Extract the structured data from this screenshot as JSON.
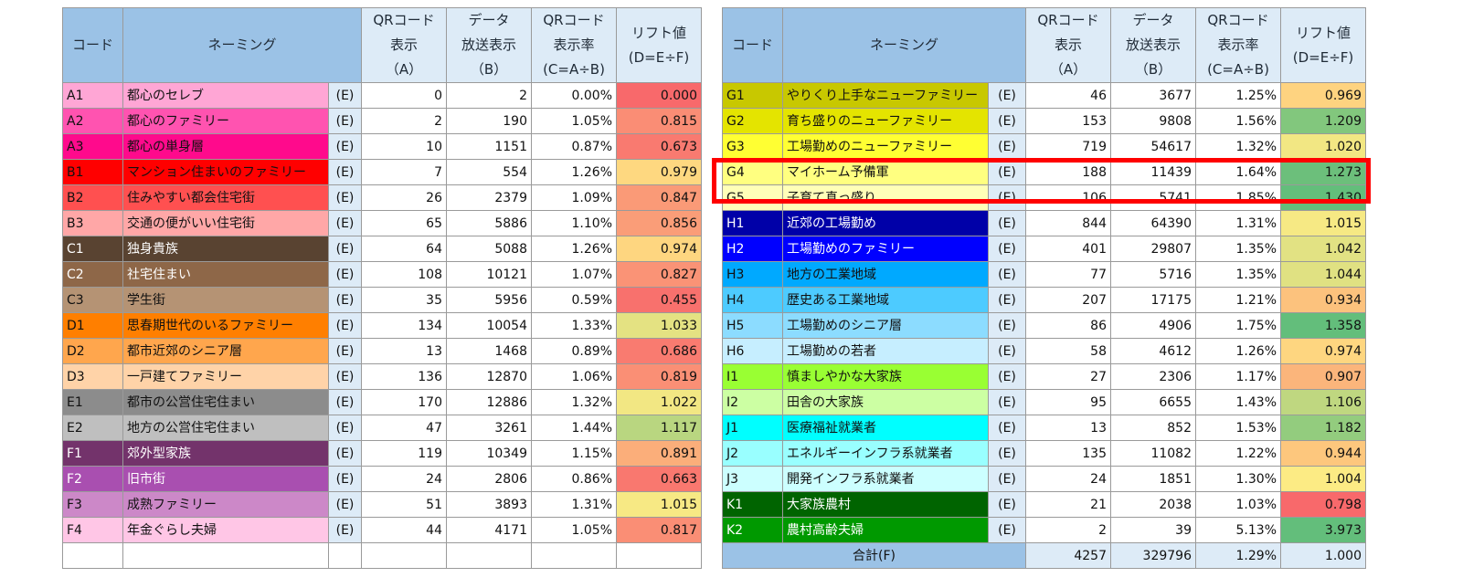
{
  "headers": {
    "code": "コード",
    "naming": "ネーミング",
    "qr": [
      "QRコード",
      "表示",
      "（A）"
    ],
    "data": [
      "データ",
      "放送表示",
      "（B）"
    ],
    "rate": [
      "QRコード",
      "表示率",
      "(C=A÷B)"
    ],
    "lift": [
      "リフト値",
      "(D=E÷F)"
    ]
  },
  "left_rows": [
    {
      "code": "A1",
      "name": "都心のセレブ",
      "e": "(E)",
      "a": "0",
      "b": "2",
      "c": "0.00%",
      "d": "0.000",
      "code_color": "#ffa6d5",
      "lift_color": "#f8696b",
      "text_color": "#111111"
    },
    {
      "code": "A2",
      "name": "都心のファミリー",
      "e": "(E)",
      "a": "2",
      "b": "190",
      "c": "1.05%",
      "d": "0.815",
      "code_color": "#ff53b0",
      "lift_color": "#fa8d75",
      "text_color": "#111111"
    },
    {
      "code": "A3",
      "name": "都心の単身層",
      "e": "(E)",
      "a": "10",
      "b": "1151",
      "c": "0.87%",
      "d": "0.673",
      "code_color": "#ff0a8c",
      "lift_color": "#f97a70",
      "text_color": "#111111"
    },
    {
      "code": "B1",
      "name": "マンション住まいのファミリー",
      "e": "(E)",
      "a": "7",
      "b": "554",
      "c": "1.26%",
      "d": "0.979",
      "code_color": "#ff0000",
      "lift_color": "#fed880",
      "text_color": "#111111"
    },
    {
      "code": "B2",
      "name": "住みやすい都会住宅街",
      "e": "(E)",
      "a": "26",
      "b": "2379",
      "c": "1.09%",
      "d": "0.847",
      "code_color": "#ff5050",
      "lift_color": "#fa9a77",
      "text_color": "#111111"
    },
    {
      "code": "B3",
      "name": "交通の便がいい住宅街",
      "e": "(E)",
      "a": "65",
      "b": "5886",
      "c": "1.10%",
      "d": "0.856",
      "code_color": "#ffa7a7",
      "lift_color": "#fa9d78",
      "text_color": "#111111"
    },
    {
      "code": "C1",
      "name": "独身貴族",
      "e": "(E)",
      "a": "64",
      "b": "5088",
      "c": "1.26%",
      "d": "0.974",
      "code_color": "#594331",
      "lift_color": "#fed680",
      "text_color": "#ffffff"
    },
    {
      "code": "C2",
      "name": "社宅住まい",
      "e": "(E)",
      "a": "108",
      "b": "10121",
      "c": "1.07%",
      "d": "0.827",
      "code_color": "#8e6748",
      "lift_color": "#fa9376",
      "text_color": "#ffffff"
    },
    {
      "code": "C3",
      "name": "学生街",
      "e": "(E)",
      "a": "35",
      "b": "5956",
      "c": "0.59%",
      "d": "0.455",
      "code_color": "#b59374",
      "lift_color": "#f8716d",
      "text_color": "#111111"
    },
    {
      "code": "D1",
      "name": "思春期世代のいるファミリー",
      "e": "(E)",
      "a": "134",
      "b": "10054",
      "c": "1.33%",
      "d": "1.033",
      "code_color": "#ff7f00",
      "lift_color": "#e4e282",
      "text_color": "#111111"
    },
    {
      "code": "D2",
      "name": "都市近郊のシニア層",
      "e": "(E)",
      "a": "13",
      "b": "1468",
      "c": "0.89%",
      "d": "0.686",
      "code_color": "#ffa64d",
      "lift_color": "#f97b70",
      "text_color": "#111111"
    },
    {
      "code": "D3",
      "name": "一戸建てファミリー",
      "e": "(E)",
      "a": "136",
      "b": "12870",
      "c": "1.06%",
      "d": "0.819",
      "code_color": "#ffd3a8",
      "lift_color": "#fa8f75",
      "text_color": "#111111"
    },
    {
      "code": "E1",
      "name": "都市の公営住宅住まい",
      "e": "(E)",
      "a": "170",
      "b": "12886",
      "c": "1.32%",
      "d": "1.022",
      "code_color": "#8c8c8c",
      "lift_color": "#f2e783",
      "text_color": "#111111"
    },
    {
      "code": "E2",
      "name": "地方の公営住宅住まい",
      "e": "(E)",
      "a": "47",
      "b": "3261",
      "c": "1.44%",
      "d": "1.117",
      "code_color": "#bfbfbf",
      "lift_color": "#b9d680",
      "text_color": "#111111"
    },
    {
      "code": "F1",
      "name": "郊外型家族",
      "e": "(E)",
      "a": "119",
      "b": "10349",
      "c": "1.15%",
      "d": "0.891",
      "code_color": "#73336b",
      "lift_color": "#fbae7a",
      "text_color": "#ffffff"
    },
    {
      "code": "F2",
      "name": "旧市街",
      "e": "(E)",
      "a": "24",
      "b": "2806",
      "c": "0.86%",
      "d": "0.663",
      "code_color": "#a94fb0",
      "lift_color": "#f9786f",
      "text_color": "#ffffff"
    },
    {
      "code": "F3",
      "name": "成熟ファミリー",
      "e": "(E)",
      "a": "51",
      "b": "3893",
      "c": "1.31%",
      "d": "1.015",
      "code_color": "#cc88c8",
      "lift_color": "#f7e984",
      "text_color": "#111111"
    },
    {
      "code": "F4",
      "name": "年金ぐらし夫婦",
      "e": "(E)",
      "a": "44",
      "b": "4171",
      "c": "1.05%",
      "d": "0.817",
      "code_color": "#ffc6e6",
      "lift_color": "#fa8e75",
      "text_color": "#111111"
    }
  ],
  "right_rows": [
    {
      "code": "G1",
      "name": "やりくり上手なニューファミリー",
      "e": "(E)",
      "a": "46",
      "b": "3677",
      "c": "1.25%",
      "d": "0.969",
      "code_color": "#c8c800",
      "lift_color": "#fed380",
      "text_color": "#111111"
    },
    {
      "code": "G2",
      "name": "育ち盛りのニューファミリー",
      "e": "(E)",
      "a": "153",
      "b": "9808",
      "c": "1.56%",
      "d": "1.209",
      "code_color": "#e4e400",
      "lift_color": "#82c77d",
      "text_color": "#111111"
    },
    {
      "code": "G3",
      "name": "工場勤めのニューファミリー",
      "e": "(E)",
      "a": "719",
      "b": "54617",
      "c": "1.32%",
      "d": "1.020",
      "code_color": "#ffff33",
      "lift_color": "#f2e783",
      "text_color": "#111111"
    },
    {
      "code": "G4",
      "name": "マイホーム予備軍",
      "e": "(E)",
      "a": "188",
      "b": "11439",
      "c": "1.64%",
      "d": "1.273",
      "code_color": "#ffff80",
      "lift_color": "#6cbf7b",
      "text_color": "#111111"
    },
    {
      "code": "G5",
      "name": "子育て真っ盛り",
      "e": "(E)",
      "a": "106",
      "b": "5741",
      "c": "1.85%",
      "d": "1.430",
      "code_color": "#ffffb8",
      "lift_color": "#63be7b",
      "text_color": "#111111"
    },
    {
      "code": "H1",
      "name": "近郊の工場勤め",
      "e": "(E)",
      "a": "844",
      "b": "64390",
      "c": "1.31%",
      "d": "1.015",
      "code_color": "#0000a8",
      "lift_color": "#f6e984",
      "text_color": "#ffffff"
    },
    {
      "code": "H2",
      "name": "工場勤めのファミリー",
      "e": "(E)",
      "a": "401",
      "b": "29807",
      "c": "1.35%",
      "d": "1.042",
      "code_color": "#0000ff",
      "lift_color": "#e2e283",
      "text_color": "#ffffff"
    },
    {
      "code": "H3",
      "name": "地方の工業地域",
      "e": "(E)",
      "a": "77",
      "b": "5716",
      "c": "1.35%",
      "d": "1.044",
      "code_color": "#00a9ff",
      "lift_color": "#e0e182",
      "text_color": "#111111"
    },
    {
      "code": "H4",
      "name": "歴史ある工業地域",
      "e": "(E)",
      "a": "207",
      "b": "17175",
      "c": "1.21%",
      "d": "0.934",
      "code_color": "#4dcbff",
      "lift_color": "#fcc27d",
      "text_color": "#111111"
    },
    {
      "code": "H5",
      "name": "工場勤めのシニア層",
      "e": "(E)",
      "a": "86",
      "b": "4906",
      "c": "1.75%",
      "d": "1.358",
      "code_color": "#8cdcff",
      "lift_color": "#63be7b",
      "text_color": "#111111"
    },
    {
      "code": "H6",
      "name": "工場勤めの若者",
      "e": "(E)",
      "a": "58",
      "b": "4612",
      "c": "1.26%",
      "d": "0.974",
      "code_color": "#c6eeff",
      "lift_color": "#fed680",
      "text_color": "#111111"
    },
    {
      "code": "I1",
      "name": "慎ましやかな大家族",
      "e": "(E)",
      "a": "27",
      "b": "2306",
      "c": "1.17%",
      "d": "0.907",
      "code_color": "#99ff33",
      "lift_color": "#fbb57b",
      "text_color": "#111111"
    },
    {
      "code": "I2",
      "name": "田舎の大家族",
      "e": "(E)",
      "a": "95",
      "b": "6655",
      "c": "1.43%",
      "d": "1.106",
      "code_color": "#ccffa3",
      "lift_color": "#bfd780",
      "text_color": "#111111"
    },
    {
      "code": "J1",
      "name": "医療福祉就業者",
      "e": "(E)",
      "a": "13",
      "b": "852",
      "c": "1.53%",
      "d": "1.182",
      "code_color": "#00ffff",
      "lift_color": "#93cc7e",
      "text_color": "#111111"
    },
    {
      "code": "J2",
      "name": "エネルギーインフラ系就業者",
      "e": "(E)",
      "a": "135",
      "b": "11082",
      "c": "1.22%",
      "d": "0.944",
      "code_color": "#99ffff",
      "lift_color": "#fdc77d",
      "text_color": "#111111"
    },
    {
      "code": "J3",
      "name": "開発インフラ系就業者",
      "e": "(E)",
      "a": "24",
      "b": "1851",
      "c": "1.30%",
      "d": "1.004",
      "code_color": "#ccffff",
      "lift_color": "#fceb84",
      "text_color": "#111111"
    },
    {
      "code": "K1",
      "name": "大家族農村",
      "e": "(E)",
      "a": "21",
      "b": "2038",
      "c": "1.03%",
      "d": "0.798",
      "code_color": "#006400",
      "lift_color": "#f8696b",
      "text_color": "#ffffff"
    },
    {
      "code": "K2",
      "name": "農村高齢夫婦",
      "e": "(E)",
      "a": "2",
      "b": "39",
      "c": "5.13%",
      "d": "3.973",
      "code_color": "#009900",
      "lift_color": "#63be7b",
      "text_color": "#ffffff"
    }
  ],
  "total": {
    "label": "合計(F)",
    "a": "4257",
    "b": "329796",
    "c": "1.29%",
    "d": "1.000"
  }
}
